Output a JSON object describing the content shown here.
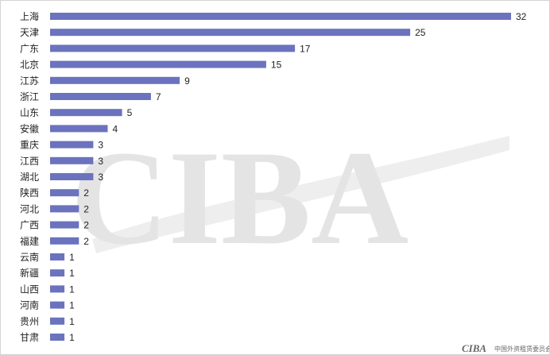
{
  "chart_data": {
    "type": "bar",
    "orientation": "horizontal",
    "categories": [
      "上海",
      "天津",
      "广东",
      "北京",
      "江苏",
      "浙江",
      "山东",
      "安徽",
      "重庆",
      "江西",
      "湖北",
      "陕西",
      "河北",
      "广西",
      "福建",
      "云南",
      "新疆",
      "山西",
      "河南",
      "贵州",
      "甘肃"
    ],
    "values": [
      32,
      25,
      17,
      15,
      9,
      7,
      5,
      4,
      3,
      3,
      3,
      2,
      2,
      2,
      2,
      1,
      1,
      1,
      1,
      1,
      1
    ],
    "title": "",
    "xlabel": "",
    "ylabel": "",
    "xlim": [
      0,
      32
    ],
    "grid": false,
    "data_labels": true,
    "bar_color": "#6b73bf"
  },
  "watermark": {
    "text": "CIBA",
    "color": "#e4e4e4"
  },
  "footer_logo": {
    "mark": "CIBA",
    "subtitle": "中国外资租赁委员会"
  }
}
